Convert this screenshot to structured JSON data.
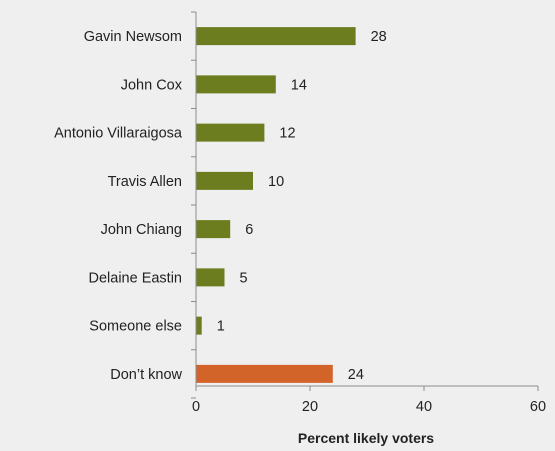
{
  "chart_data": {
    "type": "bar",
    "orientation": "horizontal",
    "categories": [
      "Gavin Newsom",
      "John Cox",
      "Antonio Villaraigosa",
      "Travis Allen",
      "John Chiang",
      "Delaine Eastin",
      "Someone else",
      "Don’t know"
    ],
    "values": [
      28,
      14,
      12,
      10,
      6,
      5,
      1,
      24
    ],
    "bar_colors": [
      "#6b7d1f",
      "#6b7d1f",
      "#6b7d1f",
      "#6b7d1f",
      "#6b7d1f",
      "#6b7d1f",
      "#6b7d1f",
      "#d2642a"
    ],
    "title": "",
    "xlabel": "Percent likely voters",
    "ylabel": "",
    "xlim": [
      0,
      60
    ],
    "xticks": [
      0,
      20,
      40,
      60
    ],
    "grid": false,
    "legend": "none"
  }
}
